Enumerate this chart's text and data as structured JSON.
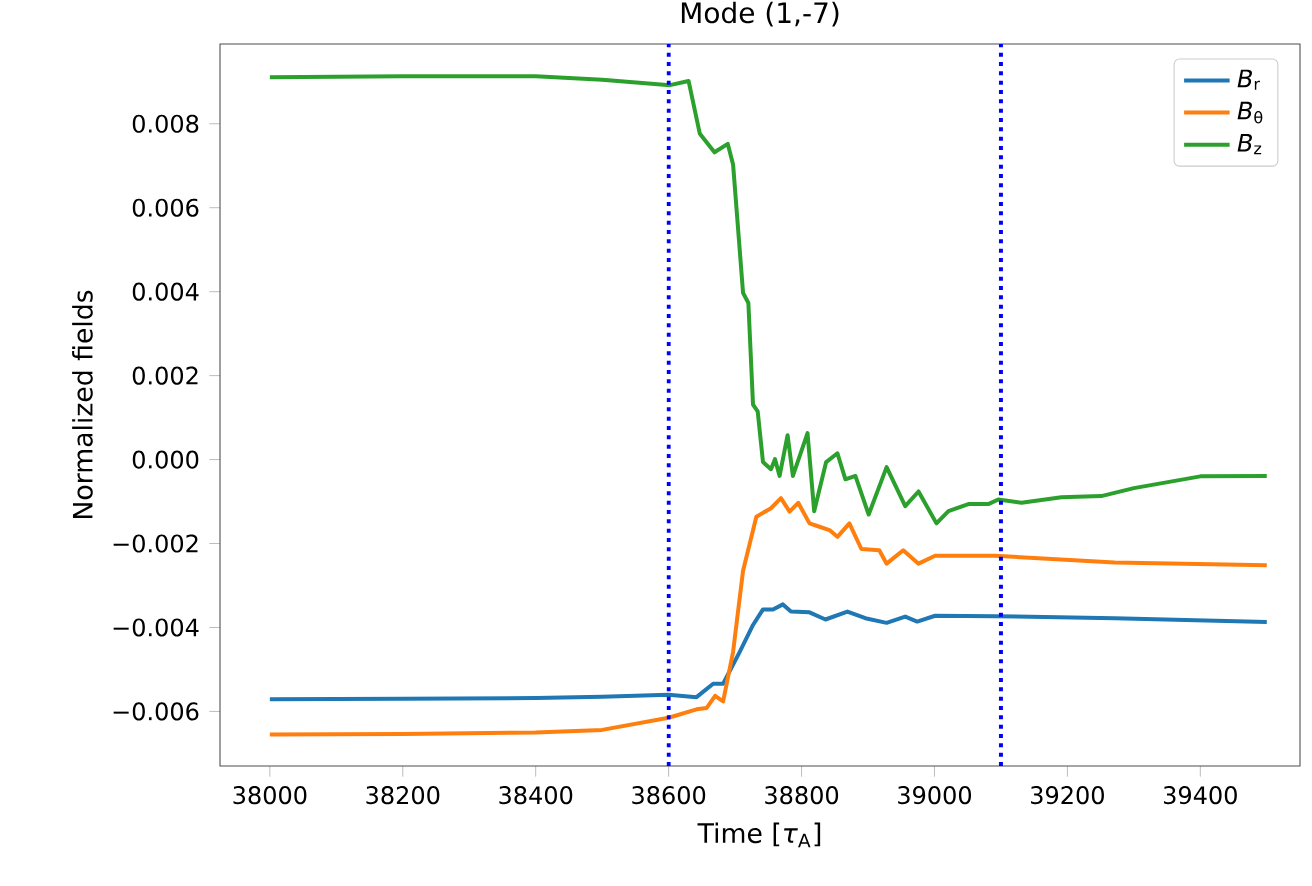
{
  "chart_data": {
    "type": "line",
    "title": "Mode (1,-7)",
    "xlabel": "Time [*τ*$_{A}$]",
    "ylabel": "Normalized fields",
    "series": [
      {
        "name": "*B*$_{r}$",
        "color": "#1f77b4",
        "x": [
          38000,
          38200,
          38400,
          38500,
          38600,
          38642,
          38667,
          38682,
          38707,
          38727,
          38742,
          38757,
          38772,
          38784,
          38812,
          38836,
          38869,
          38896,
          38928,
          38956,
          38974,
          39001,
          39091,
          39271,
          39500
        ],
        "values": [
          -0.00571,
          -0.0057,
          -0.00568,
          -0.00565,
          -0.0056,
          -0.00566,
          -0.00534,
          -0.00534,
          -0.00458,
          -0.00394,
          -0.00357,
          -0.00357,
          -0.00345,
          -0.00362,
          -0.00364,
          -0.00381,
          -0.00362,
          -0.00378,
          -0.00389,
          -0.00374,
          -0.00386,
          -0.00372,
          -0.00373,
          -0.00378,
          -0.00387
        ]
      },
      {
        "name": "*B*$_{θ}$",
        "color": "#ff7f0e",
        "x": [
          38000,
          38200,
          38400,
          38500,
          38600,
          38642,
          38657,
          38670,
          38682,
          38697,
          38712,
          38732,
          38754,
          38769,
          38782,
          38795,
          38812,
          38827,
          38842,
          38854,
          38872,
          38890,
          38917,
          38928,
          38953,
          38976,
          39001,
          39091,
          39271,
          39500
        ],
        "values": [
          -0.00655,
          -0.00654,
          -0.0065,
          -0.00644,
          -0.00615,
          -0.00595,
          -0.00592,
          -0.00563,
          -0.00576,
          -0.00458,
          -0.00265,
          -0.00136,
          -0.00116,
          -0.00092,
          -0.00124,
          -0.00103,
          -0.00152,
          -0.0016,
          -0.00168,
          -0.00184,
          -0.00152,
          -0.00213,
          -0.00216,
          -0.00248,
          -0.00216,
          -0.00248,
          -0.00229,
          -0.00229,
          -0.00245,
          -0.00252
        ]
      },
      {
        "name": "*B*$_{z}$",
        "color": "#2ca02c",
        "x": [
          38000,
          38200,
          38400,
          38500,
          38602,
          38630,
          38647,
          38669,
          38689,
          38697,
          38712,
          38720,
          38727,
          38734,
          38742,
          38754,
          38760,
          38767,
          38779,
          38787,
          38809,
          38819,
          38837,
          38854,
          38866,
          38881,
          38901,
          38928,
          38956,
          38976,
          39003,
          39021,
          39051,
          39081,
          39096,
          39131,
          39191,
          39251,
          39300,
          39400,
          39500
        ],
        "values": [
          0.00911,
          0.00913,
          0.00913,
          0.00905,
          0.00892,
          0.00902,
          0.00776,
          0.00732,
          0.00752,
          0.00703,
          0.00397,
          0.00373,
          0.00131,
          0.00115,
          -6e-05,
          -0.00023,
          1e-05,
          -0.00039,
          0.00058,
          -0.00039,
          0.00063,
          -0.00123,
          -6e-05,
          0.00015,
          -0.00047,
          -0.00039,
          -0.00131,
          -0.00018,
          -0.00111,
          -0.00076,
          -0.00152,
          -0.00123,
          -0.00106,
          -0.00106,
          -0.00095,
          -0.00103,
          -0.0009,
          -0.00087,
          -0.00068,
          -0.0004,
          -0.00039
        ]
      }
    ],
    "xlim": [
      37925,
      39550
    ],
    "ylim": [
      -0.0073,
      0.0099
    ],
    "xticks": [
      38000,
      38200,
      38400,
      38600,
      38800,
      39000,
      39200,
      39400
    ],
    "yticks": [
      {
        "value": -0.006,
        "label": "−0.006"
      },
      {
        "value": -0.004,
        "label": "−0.004"
      },
      {
        "value": -0.002,
        "label": "−0.002"
      },
      {
        "value": 0,
        "label": "0.000"
      },
      {
        "value": 0.002,
        "label": "0.002"
      },
      {
        "value": 0.004,
        "label": "0.004"
      },
      {
        "value": 0.006,
        "label": "0.006"
      },
      {
        "value": 0.008,
        "label": "0.008"
      }
    ],
    "ref_lines": [
      {
        "axis": "x",
        "value": 38600,
        "color": "#0000ff",
        "line_style": "dotted"
      },
      {
        "axis": "x",
        "value": 39100,
        "color": "#0000ff",
        "line_style": "dotted"
      }
    ],
    "legend": "top right",
    "grid": false,
    "marker": "none",
    "line_style": "solid"
  }
}
